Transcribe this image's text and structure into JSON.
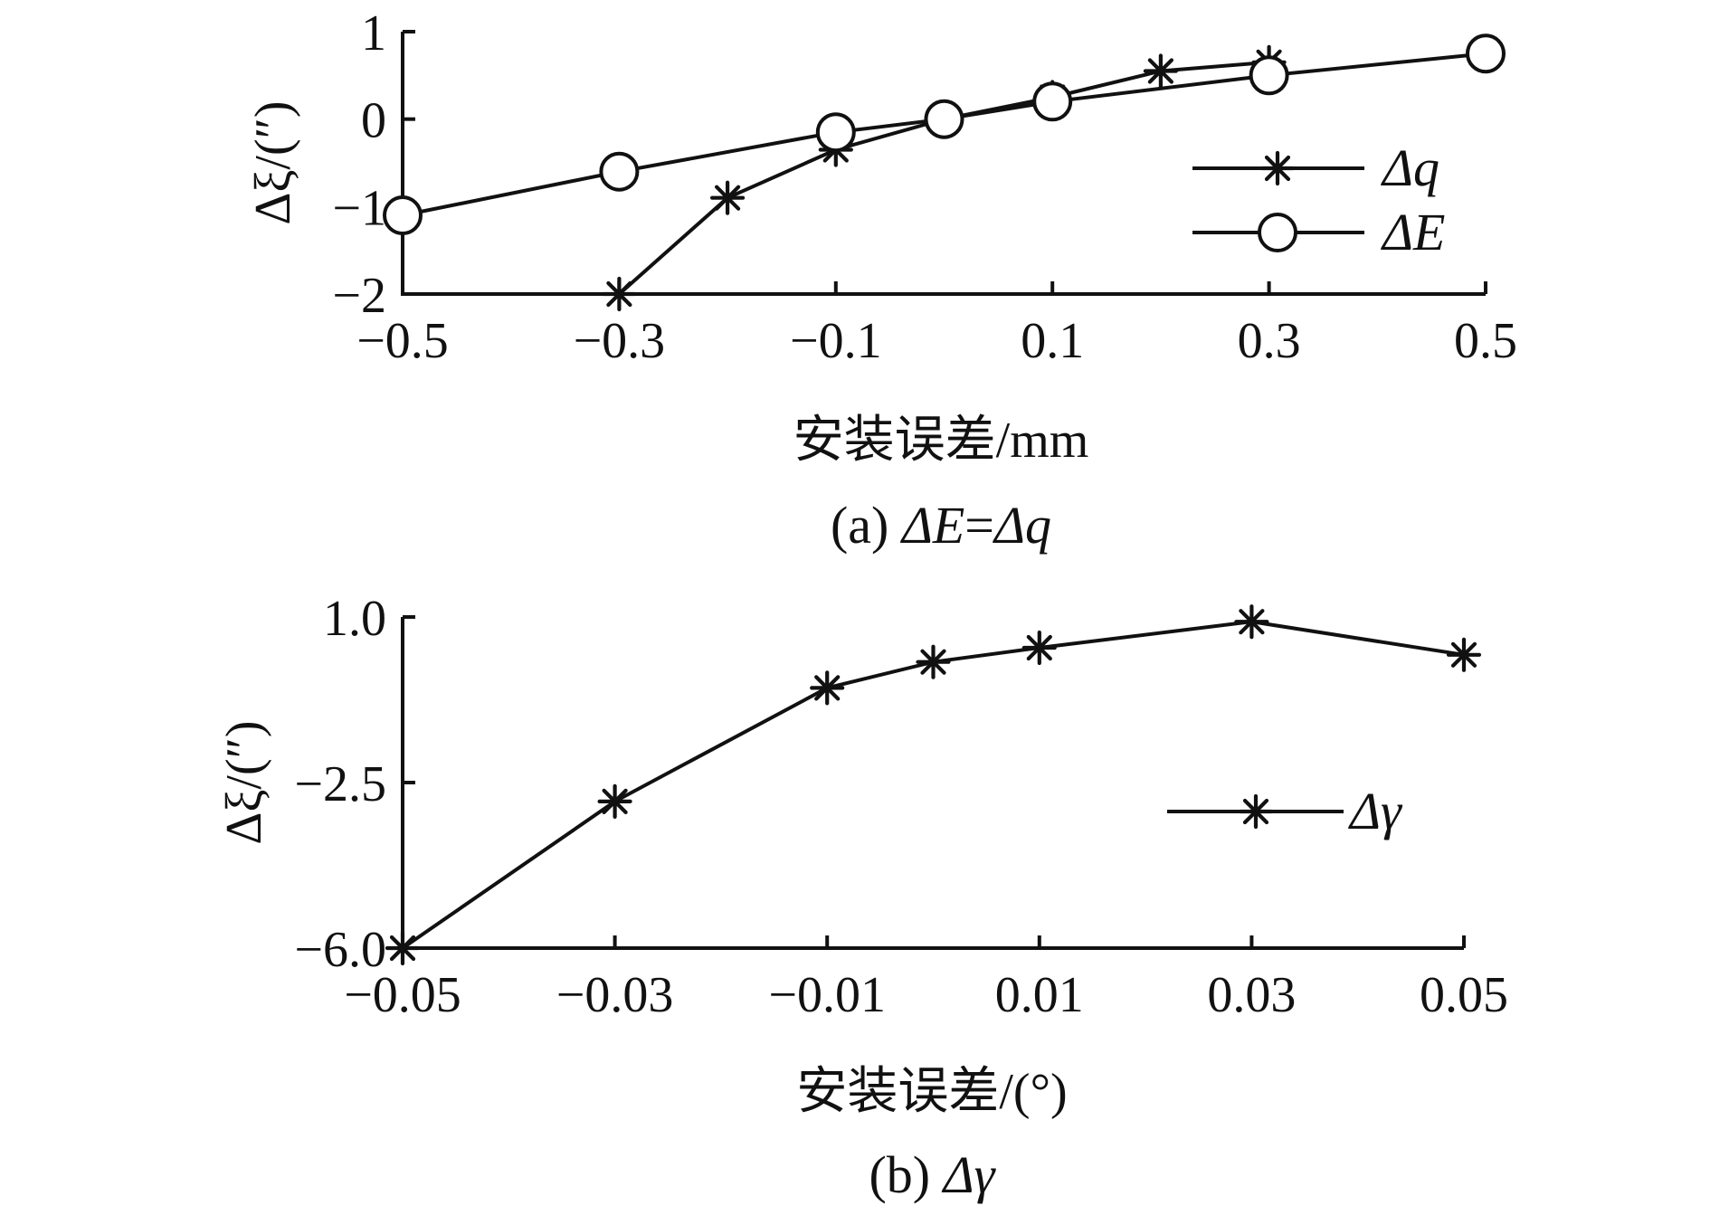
{
  "chart_data": [
    {
      "type": "line",
      "panel": "a",
      "caption": "(a) ΔE=Δq",
      "caption_parts": {
        "prefix": "(a) ",
        "eq": "="
      },
      "xlabel": "安装误差/mm",
      "ylabel": "Δξ/(″)",
      "xlim": [
        -0.5,
        0.5
      ],
      "ylim": [
        -2,
        1
      ],
      "xticks": [
        -0.5,
        -0.3,
        -0.1,
        0.1,
        0.3,
        0.5
      ],
      "xtick_labels": [
        "−0.5",
        "−0.3",
        "−0.1",
        "0.1",
        "0.3",
        "0.5"
      ],
      "yticks": [
        1,
        0,
        -1,
        -2
      ],
      "ytick_labels": [
        "1",
        "0",
        "−1",
        "−2"
      ],
      "legend_position": "center-right",
      "series": [
        {
          "name": "Δq",
          "marker": "asterisk",
          "x": [
            -0.3,
            -0.2,
            -0.1,
            0,
            0.1,
            0.2,
            0.3
          ],
          "y": [
            -2.0,
            -0.9,
            -0.35,
            0,
            0.25,
            0.55,
            0.65
          ]
        },
        {
          "name": "ΔE",
          "marker": "circle",
          "x": [
            -0.5,
            -0.3,
            -0.1,
            0,
            0.1,
            0.3,
            0.5
          ],
          "y": [
            -1.1,
            -0.6,
            -0.15,
            0,
            0.2,
            0.5,
            0.75
          ]
        }
      ]
    },
    {
      "type": "line",
      "panel": "b",
      "caption": "(b) Δγ",
      "caption_parts": {
        "prefix": "(b) "
      },
      "xlabel": "安装误差/(°)",
      "ylabel": "Δξ/(″)",
      "xlim": [
        -0.05,
        0.05
      ],
      "ylim": [
        -6,
        1
      ],
      "xticks": [
        -0.05,
        -0.03,
        -0.01,
        0.01,
        0.03,
        0.05
      ],
      "xtick_labels": [
        "−0.05",
        "−0.03",
        "−0.01",
        "0.01",
        "0.03",
        "0.05"
      ],
      "yticks": [
        1,
        -2.5,
        -6
      ],
      "ytick_labels": [
        "1.0",
        "−2.5",
        "−6.0"
      ],
      "legend_position": "center-right",
      "series": [
        {
          "name": "Δγ",
          "marker": "asterisk",
          "x": [
            -0.05,
            -0.03,
            -0.01,
            0,
            0.01,
            0.03,
            0.05
          ],
          "y": [
            -6.0,
            -2.9,
            -0.5,
            0.05,
            0.35,
            0.9,
            0.2
          ]
        }
      ]
    }
  ]
}
